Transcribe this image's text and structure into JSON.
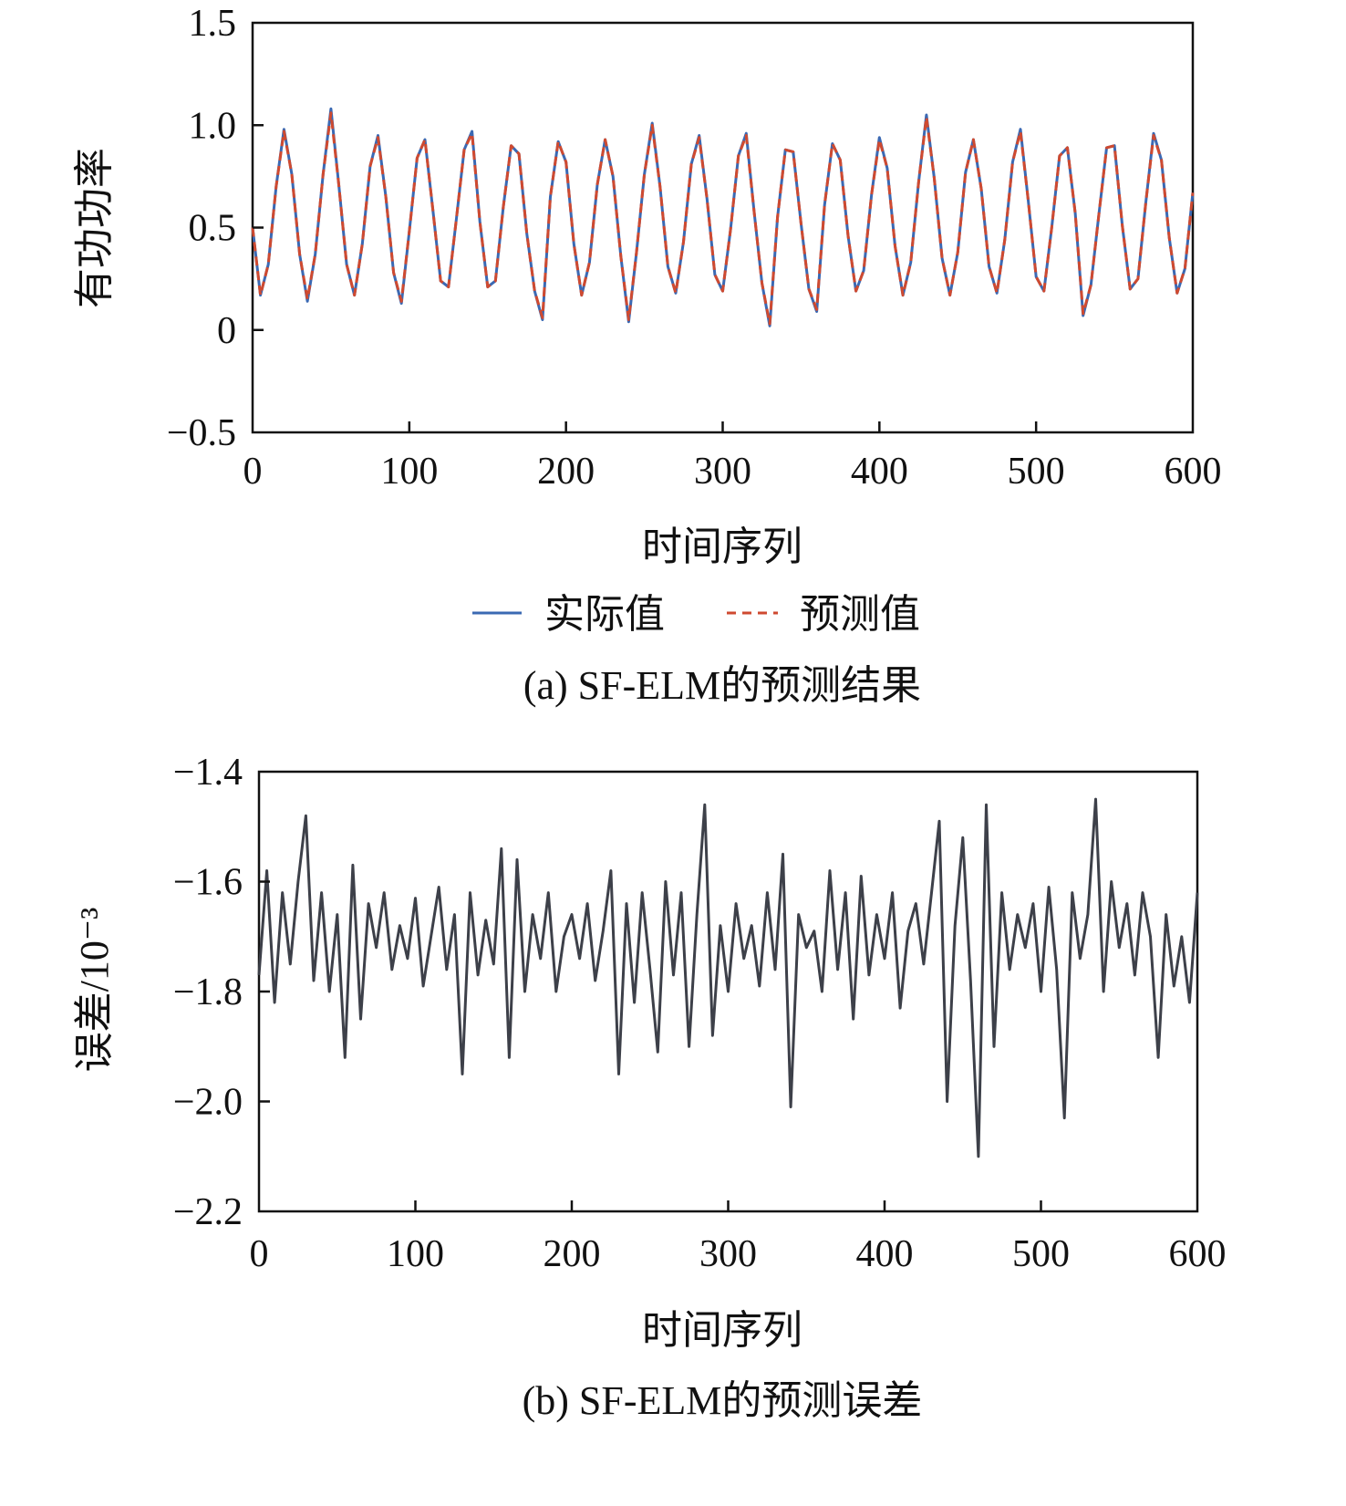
{
  "colors": {
    "actual": "#3b69b3",
    "predicted": "#cf4a30",
    "error": "#3d4049",
    "axis": "#111111"
  },
  "chart_data": [
    {
      "type": "line",
      "caption": "(a) SF-ELM的预测结果",
      "xlabel": "时间序列",
      "ylabel": "有功功率",
      "xlim": [
        0,
        600
      ],
      "ylim": [
        -0.5,
        1.5
      ],
      "xticks": [
        0,
        100,
        200,
        300,
        400,
        500,
        600
      ],
      "xtick_labels": [
        "0",
        "100",
        "200",
        "300",
        "400",
        "500",
        "600"
      ],
      "yticks": [
        -0.5,
        0,
        0.5,
        1.0,
        1.5
      ],
      "ytick_labels": [
        "−0.5",
        "0",
        "0.5",
        "1.0",
        "1.5"
      ],
      "legend": {
        "placement": "bottom-center",
        "entries": [
          "实际值",
          "预测值"
        ]
      },
      "x_step": 5,
      "series": [
        {
          "name": "实际值",
          "style": "solid",
          "values": [
            0.5,
            0.17,
            0.32,
            0.7,
            0.98,
            0.76,
            0.37,
            0.14,
            0.37,
            0.76,
            1.08,
            0.71,
            0.32,
            0.17,
            0.42,
            0.8,
            0.95,
            0.65,
            0.28,
            0.13,
            0.48,
            0.84,
            0.93,
            0.59,
            0.24,
            0.21,
            0.54,
            0.88,
            0.97,
            0.53,
            0.21,
            0.24,
            0.6,
            0.9,
            0.86,
            0.47,
            0.19,
            0.05,
            0.65,
            0.92,
            0.82,
            0.42,
            0.17,
            0.33,
            0.71,
            0.93,
            0.75,
            0.36,
            0.04,
            0.38,
            0.76,
            1.01,
            0.7,
            0.31,
            0.18,
            0.43,
            0.81,
            0.95,
            0.64,
            0.27,
            0.19,
            0.49,
            0.85,
            0.96,
            0.58,
            0.23,
            0.02,
            0.55,
            0.88,
            0.87,
            0.52,
            0.2,
            0.09,
            0.61,
            0.91,
            0.83,
            0.46,
            0.19,
            0.29,
            0.66,
            0.94,
            0.79,
            0.41,
            0.17,
            0.33,
            0.72,
            1.05,
            0.74,
            0.35,
            0.17,
            0.38,
            0.77,
            0.93,
            0.69,
            0.31,
            0.18,
            0.44,
            0.82,
            0.98,
            0.63,
            0.26,
            0.19,
            0.5,
            0.85,
            0.89,
            0.57,
            0.07,
            0.22,
            0.56,
            0.89,
            0.9,
            0.51,
            0.2,
            0.25,
            0.62,
            0.96,
            0.83,
            0.45,
            0.18,
            0.3,
            0.67
          ]
        },
        {
          "name": "预测值",
          "style": "dashed",
          "values": [
            0.5,
            0.17,
            0.32,
            0.7,
            0.97,
            0.76,
            0.37,
            0.15,
            0.37,
            0.76,
            1.06,
            0.71,
            0.32,
            0.17,
            0.42,
            0.8,
            0.94,
            0.65,
            0.28,
            0.14,
            0.48,
            0.84,
            0.93,
            0.59,
            0.24,
            0.21,
            0.54,
            0.88,
            0.96,
            0.53,
            0.21,
            0.24,
            0.6,
            0.9,
            0.86,
            0.47,
            0.19,
            0.06,
            0.65,
            0.92,
            0.82,
            0.42,
            0.17,
            0.33,
            0.71,
            0.93,
            0.75,
            0.36,
            0.05,
            0.38,
            0.76,
            1.0,
            0.7,
            0.31,
            0.18,
            0.43,
            0.81,
            0.94,
            0.64,
            0.27,
            0.19,
            0.49,
            0.85,
            0.95,
            0.58,
            0.23,
            0.03,
            0.55,
            0.88,
            0.87,
            0.52,
            0.2,
            0.1,
            0.61,
            0.91,
            0.83,
            0.46,
            0.19,
            0.29,
            0.66,
            0.93,
            0.79,
            0.41,
            0.17,
            0.33,
            0.72,
            1.04,
            0.74,
            0.35,
            0.17,
            0.38,
            0.77,
            0.93,
            0.69,
            0.31,
            0.18,
            0.44,
            0.82,
            0.97,
            0.63,
            0.26,
            0.19,
            0.5,
            0.85,
            0.89,
            0.57,
            0.08,
            0.22,
            0.56,
            0.89,
            0.9,
            0.51,
            0.2,
            0.25,
            0.62,
            0.95,
            0.83,
            0.45,
            0.18,
            0.3,
            0.67
          ]
        }
      ]
    },
    {
      "type": "line",
      "caption": "(b) SF-ELM的预测误差",
      "xlabel": "时间序列",
      "ylabel": "误差/10⁻³",
      "xlim": [
        0,
        600
      ],
      "ylim": [
        -2.2,
        -1.4
      ],
      "xticks": [
        0,
        100,
        200,
        300,
        400,
        500,
        600
      ],
      "xtick_labels": [
        "0",
        "100",
        "200",
        "300",
        "400",
        "500",
        "600"
      ],
      "yticks": [
        -2.2,
        -2.0,
        -1.8,
        -1.6,
        -1.4
      ],
      "ytick_labels": [
        "−2.2",
        "−2.0",
        "−1.8",
        "−1.6",
        "−1.4"
      ],
      "x_step": 5,
      "series": [
        {
          "name": "误差",
          "style": "solid",
          "values": [
            -1.77,
            -1.58,
            -1.82,
            -1.62,
            -1.75,
            -1.6,
            -1.48,
            -1.78,
            -1.62,
            -1.8,
            -1.66,
            -1.92,
            -1.57,
            -1.85,
            -1.64,
            -1.72,
            -1.62,
            -1.76,
            -1.68,
            -1.74,
            -1.63,
            -1.79,
            -1.7,
            -1.61,
            -1.76,
            -1.66,
            -1.95,
            -1.62,
            -1.77,
            -1.67,
            -1.75,
            -1.54,
            -1.92,
            -1.56,
            -1.8,
            -1.66,
            -1.74,
            -1.62,
            -1.8,
            -1.7,
            -1.66,
            -1.74,
            -1.64,
            -1.78,
            -1.69,
            -1.58,
            -1.95,
            -1.64,
            -1.82,
            -1.62,
            -1.76,
            -1.91,
            -1.6,
            -1.77,
            -1.62,
            -1.9,
            -1.66,
            -1.46,
            -1.88,
            -1.68,
            -1.8,
            -1.64,
            -1.74,
            -1.68,
            -1.79,
            -1.62,
            -1.76,
            -1.55,
            -2.01,
            -1.66,
            -1.72,
            -1.69,
            -1.8,
            -1.58,
            -1.76,
            -1.62,
            -1.85,
            -1.59,
            -1.77,
            -1.66,
            -1.74,
            -1.62,
            -1.83,
            -1.69,
            -1.64,
            -1.75,
            -1.62,
            -1.49,
            -2.0,
            -1.68,
            -1.52,
            -1.78,
            -2.1,
            -1.46,
            -1.9,
            -1.62,
            -1.76,
            -1.66,
            -1.72,
            -1.64,
            -1.8,
            -1.61,
            -1.76,
            -2.03,
            -1.62,
            -1.74,
            -1.66,
            -1.45,
            -1.8,
            -1.6,
            -1.72,
            -1.64,
            -1.77,
            -1.62,
            -1.7,
            -1.92,
            -1.66,
            -1.79,
            -1.7,
            -1.82,
            -1.62
          ]
        }
      ]
    }
  ]
}
